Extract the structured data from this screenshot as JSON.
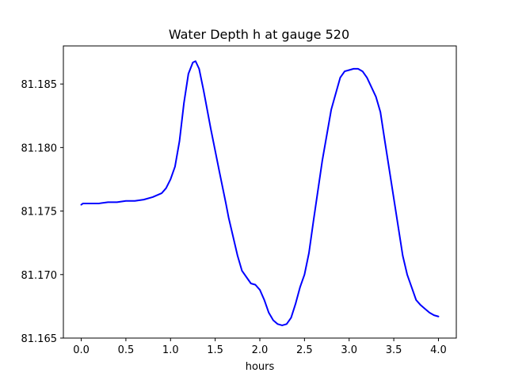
{
  "chart_data": {
    "type": "line",
    "title": "Water Depth h at gauge 520",
    "xlabel": "hours",
    "ylabel": "",
    "xlim": [
      -0.2,
      4.2
    ],
    "ylim": [
      81.165,
      81.188
    ],
    "xticks": [
      0.0,
      0.5,
      1.0,
      1.5,
      2.0,
      2.5,
      3.0,
      3.5,
      4.0
    ],
    "xtick_labels": [
      "0.0",
      "0.5",
      "1.0",
      "1.5",
      "2.0",
      "2.5",
      "3.0",
      "3.5",
      "4.0"
    ],
    "yticks": [
      81.165,
      81.17,
      81.175,
      81.18,
      81.185
    ],
    "ytick_labels": [
      "81.165",
      "81.170",
      "81.175",
      "81.180",
      "81.185"
    ],
    "grid": false,
    "series": [
      {
        "color": "#0000ff",
        "x": [
          0.0,
          0.02,
          0.1,
          0.2,
          0.3,
          0.4,
          0.5,
          0.6,
          0.7,
          0.8,
          0.9,
          0.95,
          1.0,
          1.05,
          1.1,
          1.15,
          1.2,
          1.25,
          1.28,
          1.32,
          1.37,
          1.45,
          1.55,
          1.62,
          1.65,
          1.7,
          1.75,
          1.8,
          1.85,
          1.9,
          1.95,
          2.0,
          2.05,
          2.1,
          2.15,
          2.2,
          2.25,
          2.3,
          2.35,
          2.4,
          2.45,
          2.5,
          2.55,
          2.6,
          2.7,
          2.8,
          2.9,
          2.95,
          3.0,
          3.05,
          3.1,
          3.15,
          3.2,
          3.3,
          3.35,
          3.4,
          3.5,
          3.6,
          3.65,
          3.7,
          3.75,
          3.8,
          3.85,
          3.9,
          3.95,
          4.0
        ],
        "y": [
          81.1755,
          81.1756,
          81.1756,
          81.1756,
          81.1757,
          81.1757,
          81.1758,
          81.1758,
          81.1759,
          81.1761,
          81.1764,
          81.1768,
          81.1775,
          81.1785,
          81.1805,
          81.1835,
          81.1858,
          81.1867,
          81.1868,
          81.1862,
          81.1845,
          81.1815,
          81.178,
          81.1756,
          81.1745,
          81.173,
          81.1715,
          81.1703,
          81.1698,
          81.1693,
          81.1692,
          81.1688,
          81.168,
          81.167,
          81.1664,
          81.1661,
          81.166,
          81.1661,
          81.1666,
          81.1677,
          81.169,
          81.17,
          81.1717,
          81.1742,
          81.179,
          81.183,
          81.1855,
          81.186,
          81.1861,
          81.1862,
          81.1862,
          81.186,
          81.1855,
          81.184,
          81.1828,
          81.1805,
          81.176,
          81.1715,
          81.17,
          81.169,
          81.168,
          81.1676,
          81.1673,
          81.167,
          81.1668,
          81.1667
        ]
      }
    ]
  }
}
